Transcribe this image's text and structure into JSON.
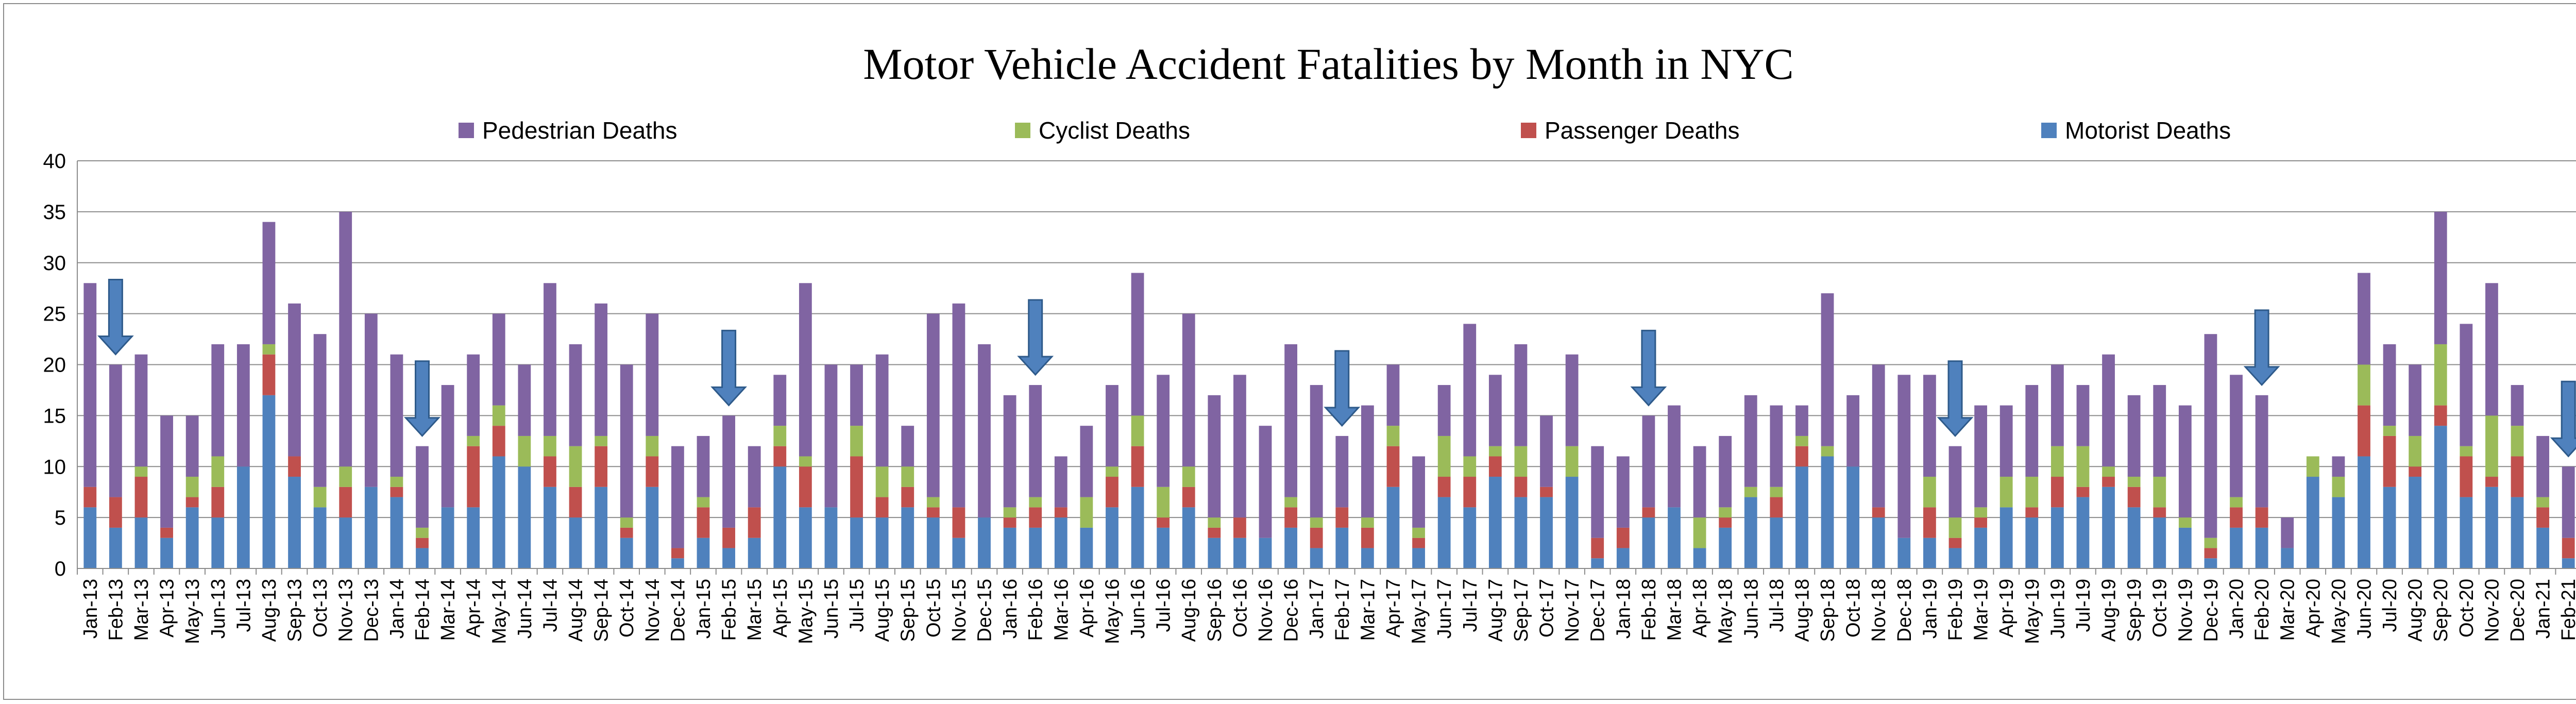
{
  "chart_data": {
    "type": "bar",
    "stacked": true,
    "title": "Motor Vehicle Accident Fatalities by Month in NYC",
    "xlabel": "",
    "ylabel": "",
    "ylim": [
      0,
      40
    ],
    "yticks": [
      0,
      5,
      10,
      15,
      20,
      25,
      30,
      35,
      40
    ],
    "grid": true,
    "legend_position": "top",
    "categories": [
      "Jan-13",
      "Feb-13",
      "Mar-13",
      "Apr-13",
      "May-13",
      "Jun-13",
      "Jul-13",
      "Aug-13",
      "Sep-13",
      "Oct-13",
      "Nov-13",
      "Dec-13",
      "Jan-14",
      "Feb-14",
      "Mar-14",
      "Apr-14",
      "May-14",
      "Jun-14",
      "Jul-14",
      "Aug-14",
      "Sep-14",
      "Oct-14",
      "Nov-14",
      "Dec-14",
      "Jan-15",
      "Feb-15",
      "Mar-15",
      "Apr-15",
      "May-15",
      "Jun-15",
      "Jul-15",
      "Aug-15",
      "Sep-15",
      "Oct-15",
      "Nov-15",
      "Dec-15",
      "Jan-16",
      "Feb-16",
      "Mar-16",
      "Apr-16",
      "May-16",
      "Jun-16",
      "Jul-16",
      "Aug-16",
      "Sep-16",
      "Oct-16",
      "Nov-16",
      "Dec-16",
      "Jan-17",
      "Feb-17",
      "Mar-17",
      "Apr-17",
      "May-17",
      "Jun-17",
      "Jul-17",
      "Aug-17",
      "Sep-17",
      "Oct-17",
      "Nov-17",
      "Dec-17",
      "Jan-18",
      "Feb-18",
      "Mar-18",
      "Apr-18",
      "May-18",
      "Jun-18",
      "Jul-18",
      "Aug-18",
      "Sep-18",
      "Oct-18",
      "Nov-18",
      "Dec-18",
      "Jan-19",
      "Feb-19",
      "Mar-19",
      "Apr-19",
      "May-19",
      "Jun-19",
      "Jul-19",
      "Aug-19",
      "Sep-19",
      "Oct-19",
      "Nov-19",
      "Dec-19",
      "Jan-20",
      "Feb-20",
      "Mar-20",
      "Apr-20",
      "May-20",
      "Jun-20",
      "Jul-20",
      "Aug-20",
      "Sep-20",
      "Oct-20",
      "Nov-20",
      "Dec-20",
      "Jan-21",
      "Feb-21"
    ],
    "xtick_labels_every": 1,
    "series": [
      {
        "name": "Motorist Deaths",
        "color": "#4f81bd",
        "values": [
          6,
          4,
          5,
          3,
          6,
          5,
          10,
          17,
          9,
          6,
          5,
          8,
          7,
          2,
          6,
          6,
          11,
          10,
          8,
          5,
          8,
          3,
          8,
          1,
          3,
          2,
          3,
          10,
          6,
          6,
          5,
          5,
          6,
          5,
          3,
          5,
          4,
          4,
          5,
          4,
          6,
          8,
          4,
          6,
          3,
          3,
          3,
          4,
          2,
          4,
          2,
          8,
          2,
          7,
          6,
          9,
          7,
          7,
          9,
          1,
          2,
          5,
          6,
          2,
          4,
          7,
          5,
          10,
          11,
          10,
          5,
          3,
          3,
          2,
          4,
          6,
          5,
          6,
          7,
          8,
          6,
          5,
          4,
          1,
          4,
          4,
          2,
          9,
          7,
          11,
          8,
          9,
          14,
          7,
          8,
          7,
          4,
          1
        ]
      },
      {
        "name": "Passenger Deaths",
        "color": "#c0504d",
        "values": [
          2,
          3,
          4,
          1,
          1,
          3,
          0,
          4,
          2,
          0,
          3,
          0,
          1,
          1,
          0,
          6,
          3,
          0,
          3,
          3,
          4,
          1,
          3,
          1,
          3,
          2,
          3,
          2,
          4,
          0,
          6,
          2,
          2,
          1,
          3,
          0,
          1,
          2,
          1,
          0,
          3,
          4,
          1,
          2,
          1,
          2,
          0,
          2,
          2,
          2,
          2,
          4,
          1,
          2,
          3,
          2,
          2,
          1,
          0,
          2,
          2,
          1,
          0,
          0,
          1,
          0,
          2,
          2,
          0,
          0,
          1,
          0,
          3,
          1,
          1,
          0,
          1,
          3,
          1,
          1,
          2,
          1,
          0,
          1,
          2,
          2,
          0,
          0,
          0,
          5,
          5,
          1,
          2,
          4,
          1,
          4,
          2,
          2
        ]
      },
      {
        "name": "Cyclist Deaths",
        "color": "#9bbb59",
        "values": [
          0,
          0,
          1,
          0,
          2,
          3,
          0,
          1,
          0,
          2,
          2,
          0,
          1,
          1,
          0,
          1,
          2,
          3,
          2,
          4,
          1,
          1,
          2,
          0,
          1,
          0,
          0,
          2,
          1,
          0,
          3,
          3,
          2,
          1,
          0,
          0,
          1,
          1,
          0,
          3,
          1,
          3,
          3,
          2,
          1,
          0,
          0,
          1,
          1,
          0,
          1,
          2,
          1,
          4,
          2,
          1,
          3,
          0,
          3,
          0,
          0,
          0,
          0,
          3,
          1,
          1,
          1,
          1,
          1,
          0,
          0,
          0,
          3,
          2,
          1,
          3,
          3,
          3,
          4,
          1,
          1,
          3,
          1,
          1,
          1,
          0,
          0,
          2,
          2,
          4,
          1,
          3,
          6,
          1,
          6,
          3,
          1,
          0
        ]
      },
      {
        "name": "Pedestrian Deaths",
        "color": "#8064a2",
        "values": [
          20,
          13,
          11,
          11,
          6,
          11,
          12,
          12,
          15,
          15,
          25,
          17,
          12,
          8,
          12,
          8,
          9,
          7,
          15,
          10,
          13,
          15,
          12,
          10,
          6,
          11,
          6,
          5,
          17,
          14,
          6,
          11,
          4,
          18,
          20,
          17,
          11,
          11,
          5,
          7,
          8,
          14,
          11,
          15,
          12,
          14,
          11,
          15,
          13,
          7,
          11,
          6,
          7,
          5,
          13,
          7,
          10,
          7,
          9,
          9,
          7,
          9,
          10,
          7,
          7,
          9,
          8,
          3,
          15,
          7,
          14,
          16,
          10,
          7,
          10,
          7,
          9,
          8,
          6,
          11,
          8,
          9,
          11,
          20,
          12,
          11,
          3,
          0,
          2,
          9,
          8,
          7,
          13,
          12,
          13,
          4,
          6,
          7
        ]
      }
    ]
  }
}
